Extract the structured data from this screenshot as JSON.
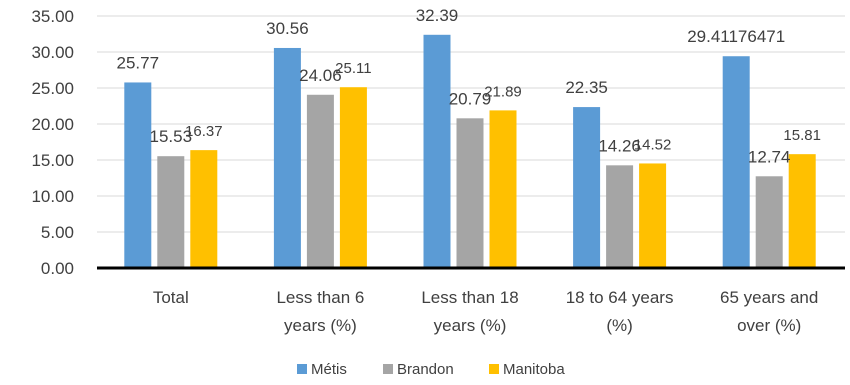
{
  "chart_data": {
    "type": "bar",
    "title": "",
    "xlabel": "",
    "ylabel": "",
    "ylim": [
      0,
      35
    ],
    "yticks": [
      "0.00",
      "5.00",
      "10.00",
      "15.00",
      "20.00",
      "25.00",
      "30.00",
      "35.00"
    ],
    "grid": true,
    "legend_position": "bottom",
    "categories": [
      [
        "Total"
      ],
      [
        "Less than 6",
        "years (%)"
      ],
      [
        "Less than 18",
        "years (%)"
      ],
      [
        "18 to 64 years",
        "(%)"
      ],
      [
        "65 years and",
        "over (%)"
      ]
    ],
    "series": [
      {
        "name": "Métis",
        "color": "#5b9bd5",
        "values": [
          25.77,
          30.56,
          32.39,
          22.35,
          29.41176471
        ],
        "labels": [
          "25.77",
          "30.56",
          "32.39",
          "22.35",
          "29.41176471"
        ]
      },
      {
        "name": "Brandon",
        "color": "#a5a5a5",
        "values": [
          15.53,
          24.06,
          20.79,
          14.26,
          12.74
        ],
        "labels": [
          "15.53",
          "24.06",
          "20.79",
          "14.26",
          "12.74"
        ]
      },
      {
        "name": "Manitoba",
        "color": "#ffc000",
        "values": [
          16.37,
          25.11,
          21.89,
          14.52,
          15.81
        ],
        "labels": [
          "16.37",
          "25.11",
          "21.89",
          "14.52",
          "15.81"
        ]
      }
    ]
  }
}
